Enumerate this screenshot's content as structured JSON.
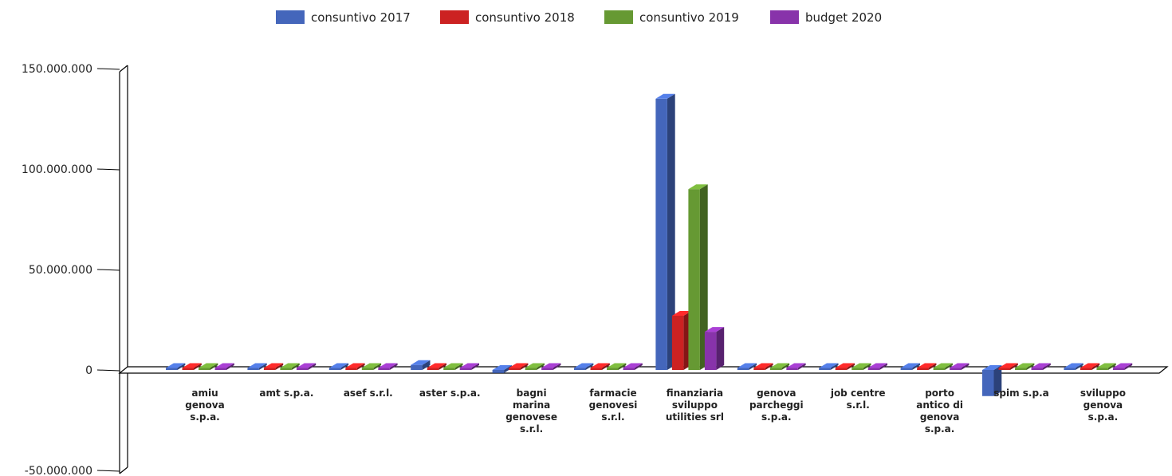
{
  "chart_data": {
    "type": "bar",
    "title": "",
    "xlabel": "",
    "ylabel": "",
    "ylim": [
      -50000000,
      150000000
    ],
    "yticks": [
      -50000000,
      0,
      50000000,
      100000000,
      150000000
    ],
    "ytick_labels": [
      "-50.000.000",
      "0",
      "50.000.000",
      "100.000.000",
      "150.000.000"
    ],
    "legend_position": "top",
    "grid": false,
    "categories": [
      "amiu genova s.p.a.",
      "amt s.p.a.",
      "asef s.r.l.",
      "aster s.p.a.",
      "bagni marina genovese s.r.l.",
      "farmacie genovesi s.r.l.",
      "finanziaria sviluppo utilities srl",
      "genova parcheggi s.p.a.",
      "job centre s.r.l.",
      "porto antico di genova s.p.a.",
      "spim s.p.a",
      "sviluppo genova s.p.a."
    ],
    "category_label_lines": [
      [
        "amiu",
        "genova",
        "s.p.a."
      ],
      [
        "amt s.p.a."
      ],
      [
        "asef s.r.l."
      ],
      [
        "aster s.p.a."
      ],
      [
        "bagni",
        "marina",
        "genovese",
        "s.r.l."
      ],
      [
        "farmacie",
        "genovesi",
        "s.r.l."
      ],
      [
        "finanziaria",
        "sviluppo",
        "utilities srl"
      ],
      [
        "genova",
        "parcheggi",
        "s.p.a."
      ],
      [
        "job centre",
        "s.r.l."
      ],
      [
        "porto",
        "antico di",
        "genova",
        "s.p.a."
      ],
      [
        "spim s.p.a"
      ],
      [
        "sviluppo",
        "genova",
        "s.p.a."
      ]
    ],
    "series": [
      {
        "name": "consuntivo 2017",
        "color": "#4466bb",
        "values": [
          200000,
          100000,
          150000,
          2500000,
          -1500000,
          300000,
          135000000,
          200000,
          100000,
          100000,
          -13000000,
          100000
        ]
      },
      {
        "name": "consuntivo 2018",
        "color": "#cc2222",
        "values": [
          100000,
          100000,
          100000,
          300000,
          100000,
          100000,
          27000000,
          100000,
          100000,
          100000,
          100000,
          100000
        ]
      },
      {
        "name": "consuntivo 2019",
        "color": "#669933",
        "values": [
          100000,
          100000,
          100000,
          100000,
          100000,
          100000,
          90000000,
          100000,
          100000,
          100000,
          100000,
          100000
        ]
      },
      {
        "name": "budget 2020",
        "color": "#8833aa",
        "values": [
          100000,
          100000,
          100000,
          100000,
          100000,
          100000,
          19000000,
          100000,
          100000,
          100000,
          100000,
          100000
        ]
      }
    ]
  }
}
